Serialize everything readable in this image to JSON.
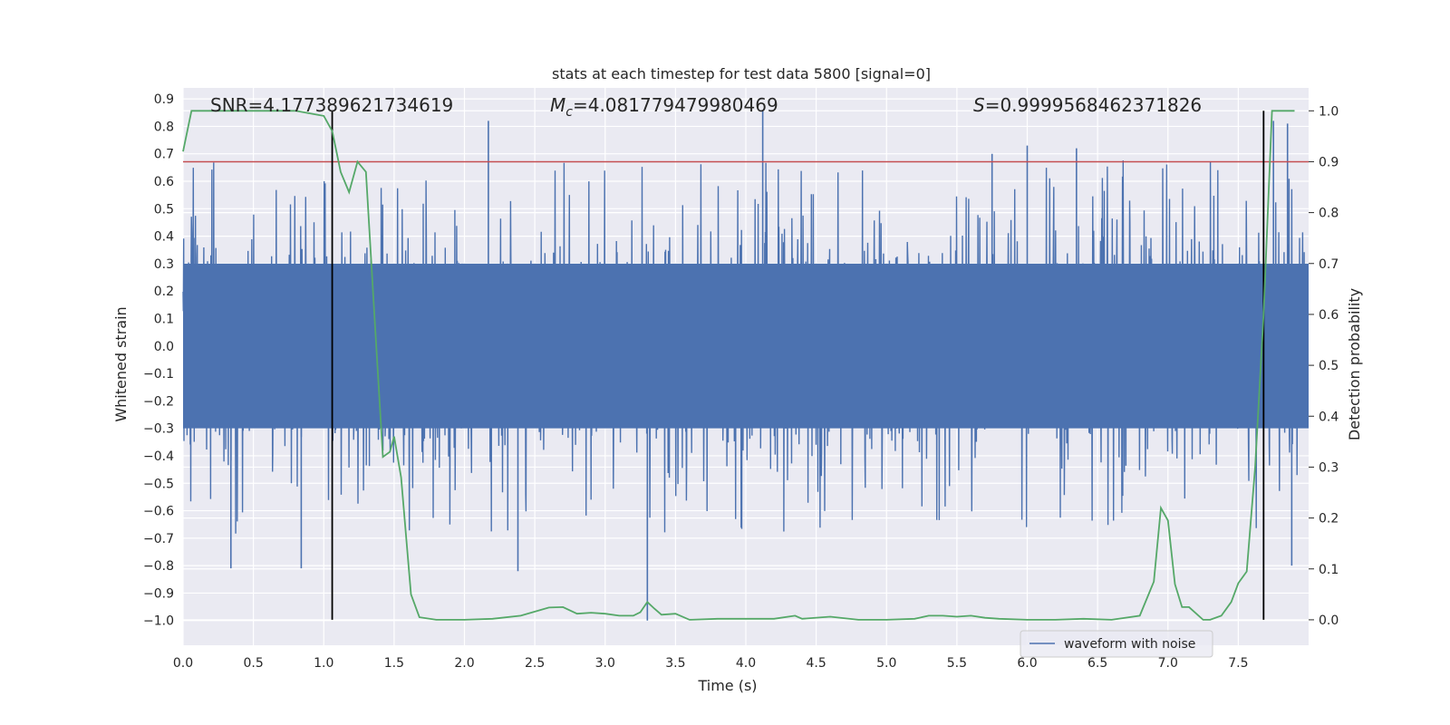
{
  "chart_data": {
    "type": "line",
    "title": "stats at each timestep for test data 5800 [signal=0]",
    "xlabel": "Time (s)",
    "ylabel": "Whitened strain",
    "y2label": "Detection probability",
    "xlim": [
      0.0,
      8.0
    ],
    "ylim": [
      -1.09,
      0.94
    ],
    "y2lim": [
      -0.05,
      1.045
    ],
    "xticks": [
      0.0,
      0.5,
      1.0,
      1.5,
      2.0,
      2.5,
      3.0,
      3.5,
      4.0,
      4.5,
      5.0,
      5.5,
      6.0,
      6.5,
      7.0,
      7.5
    ],
    "xtick_labels": [
      "0.0",
      "0.5",
      "1.0",
      "1.5",
      "2.0",
      "2.5",
      "3.0",
      "3.5",
      "4.0",
      "4.5",
      "5.0",
      "5.5",
      "6.0",
      "6.5",
      "7.0",
      "7.5"
    ],
    "yticks": [
      0.9,
      0.8,
      0.7,
      0.6,
      0.5,
      0.4,
      0.3,
      0.2,
      0.1,
      0.0,
      -0.1,
      -0.2,
      -0.3,
      -0.4,
      -0.5,
      -0.6,
      -0.7,
      -0.8,
      -0.9,
      -1.0
    ],
    "ytick_labels": [
      "0.9",
      "0.8",
      "0.7",
      "0.6",
      "0.5",
      "0.4",
      "0.3",
      "0.2",
      "0.1",
      "0.0",
      "−0.1",
      "−0.2",
      "−0.3",
      "−0.4",
      "−0.5",
      "−0.6",
      "−0.7",
      "−0.8",
      "−0.9",
      "−1.0"
    ],
    "y2ticks": [
      1.0,
      0.9,
      0.8,
      0.7,
      0.6,
      0.5,
      0.4,
      0.3,
      0.2,
      0.1,
      0.0
    ],
    "y2tick_labels": [
      "1.0",
      "0.9",
      "0.8",
      "0.7",
      "0.6",
      "0.5",
      "0.4",
      "0.3",
      "0.2",
      "0.1",
      "0.0"
    ],
    "annotations": {
      "snr": "SNR=4.177389621734619",
      "mc_symbol": "M",
      "mc_sub": "c",
      "mc_value": "=4.081779479980469",
      "s_symbol": "S",
      "s_value": "=0.9999568462371826"
    },
    "threshold_line": {
      "axis": "y2",
      "value": 0.9,
      "color": "#c44e52"
    },
    "vertical_markers": {
      "x": [
        1.06,
        7.68
      ],
      "y2_range": [
        0.0,
        1.0
      ],
      "color": "#000000"
    },
    "series": [
      {
        "name": "waveform with noise",
        "axis": "y1",
        "color": "#4c72b0",
        "description": "dense whitened strain noise, core band approx -0.3 to 0.3 with spikes",
        "core_amplitude": 0.3,
        "spikes": [
          {
            "x": 2.17,
            "y": 0.82
          },
          {
            "x": 4.12,
            "y": 0.86
          },
          {
            "x": 3.3,
            "y": -1.0
          },
          {
            "x": 0.34,
            "y": -0.81
          },
          {
            "x": 0.84,
            "y": -0.81
          },
          {
            "x": 7.75,
            "y": 0.82
          },
          {
            "x": 7.85,
            "y": 0.81
          },
          {
            "x": 7.88,
            "y": -0.8
          },
          {
            "x": 6.0,
            "y": 0.73
          },
          {
            "x": 6.35,
            "y": 0.72
          },
          {
            "x": 5.75,
            "y": 0.7
          },
          {
            "x": 2.38,
            "y": -0.82
          }
        ]
      },
      {
        "name": "detection probability",
        "axis": "y2",
        "color": "#55a868",
        "x": [
          0.0,
          0.06,
          0.2,
          0.4,
          0.6,
          0.8,
          1.0,
          1.06,
          1.12,
          1.18,
          1.24,
          1.3,
          1.36,
          1.42,
          1.47,
          1.5,
          1.55,
          1.62,
          1.68,
          1.8,
          2.0,
          2.2,
          2.4,
          2.6,
          2.7,
          2.8,
          2.9,
          3.0,
          3.1,
          3.2,
          3.25,
          3.3,
          3.35,
          3.4,
          3.5,
          3.6,
          3.8,
          4.0,
          4.2,
          4.35,
          4.4,
          4.6,
          4.8,
          5.0,
          5.2,
          5.3,
          5.4,
          5.5,
          5.6,
          5.7,
          5.8,
          6.0,
          6.2,
          6.4,
          6.6,
          6.8,
          6.9,
          6.95,
          7.0,
          7.05,
          7.1,
          7.15,
          7.25,
          7.3,
          7.38,
          7.45,
          7.5,
          7.56,
          7.62,
          7.68,
          7.74,
          7.82,
          7.9
        ],
        "y": [
          0.92,
          1.0,
          1.0,
          1.0,
          1.0,
          1.0,
          0.99,
          0.96,
          0.88,
          0.84,
          0.9,
          0.88,
          0.6,
          0.32,
          0.33,
          0.36,
          0.28,
          0.05,
          0.005,
          0.0,
          0.0,
          0.002,
          0.008,
          0.024,
          0.025,
          0.012,
          0.014,
          0.012,
          0.008,
          0.008,
          0.015,
          0.035,
          0.022,
          0.01,
          0.012,
          0.0,
          0.002,
          0.002,
          0.002,
          0.008,
          0.002,
          0.006,
          0.0,
          0.0,
          0.002,
          0.008,
          0.008,
          0.006,
          0.008,
          0.004,
          0.002,
          0.0,
          0.0,
          0.002,
          0.0,
          0.008,
          0.075,
          0.22,
          0.195,
          0.07,
          0.025,
          0.025,
          0.0,
          0.0,
          0.008,
          0.035,
          0.072,
          0.095,
          0.3,
          0.6,
          1.0,
          1.0,
          1.0
        ]
      }
    ],
    "legend": {
      "placement": "lower-right",
      "entries": [
        "waveform with noise"
      ]
    }
  }
}
